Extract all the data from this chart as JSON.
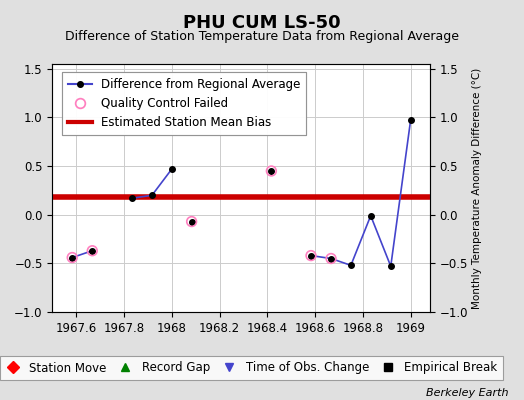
{
  "title": "PHU CUM LS-50",
  "subtitle": "Difference of Station Temperature Data from Regional Average",
  "ylabel_right": "Monthly Temperature Anomaly Difference (°C)",
  "bias_value": 0.18,
  "xlim": [
    1967.5,
    1969.08
  ],
  "ylim": [
    -1.0,
    1.55
  ],
  "yticks": [
    -1.0,
    -0.5,
    0.0,
    0.5,
    1.0,
    1.5
  ],
  "xticks": [
    1967.6,
    1967.8,
    1968.0,
    1968.2,
    1968.4,
    1968.6,
    1968.8,
    1969.0
  ],
  "xtick_labels": [
    "1967.6",
    "1967.8",
    "1968",
    "1968.2",
    "1968.4",
    "1968.6",
    "1968.8",
    "1969"
  ],
  "segments": [
    {
      "x": [
        1967.583,
        1967.667
      ],
      "y": [
        -0.44,
        -0.37
      ]
    },
    {
      "x": [
        1967.833,
        1967.917,
        1968.0
      ],
      "y": [
        0.17,
        0.2,
        0.47
      ]
    },
    {
      "x": [
        1968.083
      ],
      "y": [
        -0.07
      ]
    },
    {
      "x": [
        1968.417
      ],
      "y": [
        0.45
      ]
    },
    {
      "x": [
        1968.583,
        1968.667,
        1968.75,
        1968.833,
        1968.917,
        1969.0
      ],
      "y": [
        -0.42,
        -0.45,
        -0.52,
        -0.01,
        -0.53,
        0.97
      ]
    }
  ],
  "qc_failed_x": [
    1967.583,
    1967.667,
    1968.083,
    1968.417,
    1968.583,
    1968.667
  ],
  "qc_failed_y": [
    -0.44,
    -0.37,
    -0.07,
    0.45,
    -0.42,
    -0.45
  ],
  "line_color": "#4444cc",
  "line_width": 1.2,
  "marker_color": "#000000",
  "marker_size": 4,
  "qc_color": "#ff80c0",
  "qc_size": 7,
  "bias_color": "#cc0000",
  "bias_linewidth": 4.0,
  "bg_color": "#e0e0e0",
  "plot_bg_color": "#ffffff",
  "grid_color": "#cccccc",
  "title_fontsize": 13,
  "subtitle_fontsize": 9,
  "tick_fontsize": 8.5,
  "legend_fontsize": 8.5,
  "watermark": "Berkeley Earth"
}
